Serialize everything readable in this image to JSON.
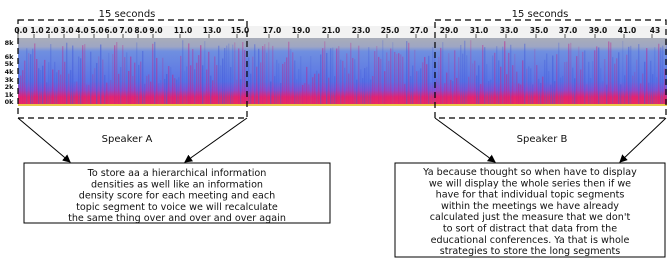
{
  "header": {
    "left_span": "15 seconds",
    "right_span": "15 seconds"
  },
  "timeline": {
    "ticks": [
      "0.0",
      "1.0",
      "2.0",
      "3.0",
      "4.0",
      "5.0",
      "6.0",
      "7.0",
      "8.0",
      "9.0",
      "11.0",
      "13.0",
      "15.0",
      "17.0",
      "19.0",
      "21.0",
      "23.0",
      "25.0",
      "27.0",
      "29.0",
      "31.0",
      "33.0",
      "35.0",
      "37.0",
      "39.0",
      "41.0",
      "43"
    ]
  },
  "frequency_axis": {
    "labels": [
      "8k",
      "6k",
      "5k",
      "4k",
      "3k",
      "2k",
      "1k",
      "0k"
    ]
  },
  "speakers": [
    {
      "label": "Speaker A",
      "transcript": [
        "To store aa a hierarchical information",
        "densities as well like an information",
        "density score for each meeting and each",
        "topic segment to voice we will recalculate",
        "the same thing over and over and over again"
      ]
    },
    {
      "label": "Speaker B",
      "transcript": [
        "Ya because thought so when have to display",
        "we will display the whole series then if we",
        "have for that individual topic segments",
        "within the meetings we have already",
        "calculated just the measure that we don't",
        "to sort of distract that data from the",
        "educational conferences. Ya that is whole",
        "strategies to store the long segments"
      ]
    }
  ]
}
